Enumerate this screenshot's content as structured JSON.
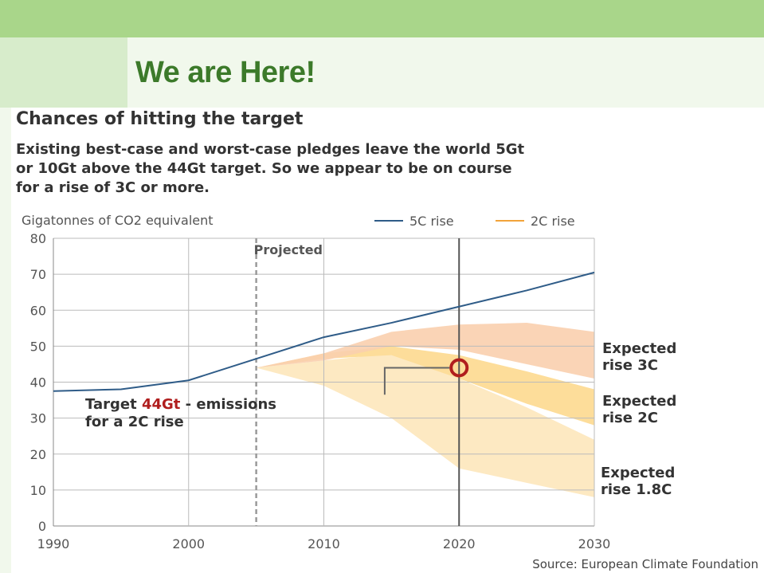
{
  "slide": {
    "title": "We are Here!"
  },
  "colors": {
    "top_band": "#a9d68a",
    "title_green": "#3c7a2a",
    "line_5c": "#2f5c88",
    "line_2c": "#f2a33a",
    "band_3c": "#f9cfae",
    "band_2c": "#fddd9a",
    "band_18c": "#fde9c2",
    "marker": "#b01e1e"
  },
  "chart_data": {
    "type": "line",
    "title": "Chances of hitting the target",
    "subtitle_lines": [
      "Existing best-case and worst-case pledges leave the world 5Gt",
      "or 10Gt above the 44Gt target. So we appear to be on course",
      "for a rise of 3C or more."
    ],
    "ylabel": "Gigatonnes of CO2 equivalent",
    "xlim": [
      1990,
      2030
    ],
    "ylim": [
      0,
      80
    ],
    "x_ticks": [
      "1990",
      "2000",
      "2010",
      "2020",
      "2030"
    ],
    "y_ticks": [
      "0",
      "10",
      "20",
      "30",
      "40",
      "50",
      "60",
      "70",
      "80"
    ],
    "grid": true,
    "legend": {
      "position": "top-right",
      "entries": [
        "5C rise",
        "2C rise"
      ]
    },
    "projected_label": "Projected",
    "projected_start": 2005,
    "series": [
      {
        "name": "5C rise",
        "points": [
          [
            1990,
            37.5
          ],
          [
            1995,
            38
          ],
          [
            2000,
            40.5
          ],
          [
            2005,
            46.5
          ],
          [
            2010,
            52.5
          ],
          [
            2015,
            56.5
          ],
          [
            2020,
            61
          ],
          [
            2025,
            65.5
          ],
          [
            2030,
            70.5
          ]
        ]
      }
    ],
    "bands": [
      {
        "label_lines": [
          "Expected",
          "rise 1.8C"
        ],
        "upper": [
          [
            2005,
            44
          ],
          [
            2010,
            46
          ],
          [
            2015,
            48
          ],
          [
            2020,
            41
          ],
          [
            2025,
            33
          ],
          [
            2030,
            24
          ]
        ],
        "lower": [
          [
            2005,
            44
          ],
          [
            2010,
            39
          ],
          [
            2015,
            30
          ],
          [
            2020,
            16
          ],
          [
            2025,
            12
          ],
          [
            2030,
            8
          ]
        ]
      },
      {
        "label_lines": [
          "Expected",
          "rise 2C"
        ],
        "upper": [
          [
            2005,
            44
          ],
          [
            2010,
            48
          ],
          [
            2015,
            50
          ],
          [
            2020,
            47.5
          ],
          [
            2025,
            43
          ],
          [
            2030,
            38
          ]
        ],
        "lower": [
          [
            2005,
            44
          ],
          [
            2010,
            46.5
          ],
          [
            2015,
            47.5
          ],
          [
            2020,
            41
          ],
          [
            2025,
            34
          ],
          [
            2030,
            28
          ]
        ]
      },
      {
        "label_lines": [
          "Expected",
          "rise 3C"
        ],
        "upper": [
          [
            2005,
            44
          ],
          [
            2010,
            48
          ],
          [
            2015,
            54
          ],
          [
            2020,
            56
          ],
          [
            2025,
            56.5
          ],
          [
            2030,
            54
          ]
        ],
        "lower": [
          [
            2005,
            44
          ],
          [
            2010,
            46
          ],
          [
            2015,
            50
          ],
          [
            2020,
            49
          ],
          [
            2025,
            45
          ],
          [
            2030,
            41
          ]
        ]
      }
    ],
    "target": {
      "x": 2020,
      "y": 44,
      "text_before": "Target ",
      "highlight": "44Gt",
      "text_after": " - emissions",
      "line2": "for a 2C rise"
    },
    "source": "Source: European Climate Foundation"
  }
}
